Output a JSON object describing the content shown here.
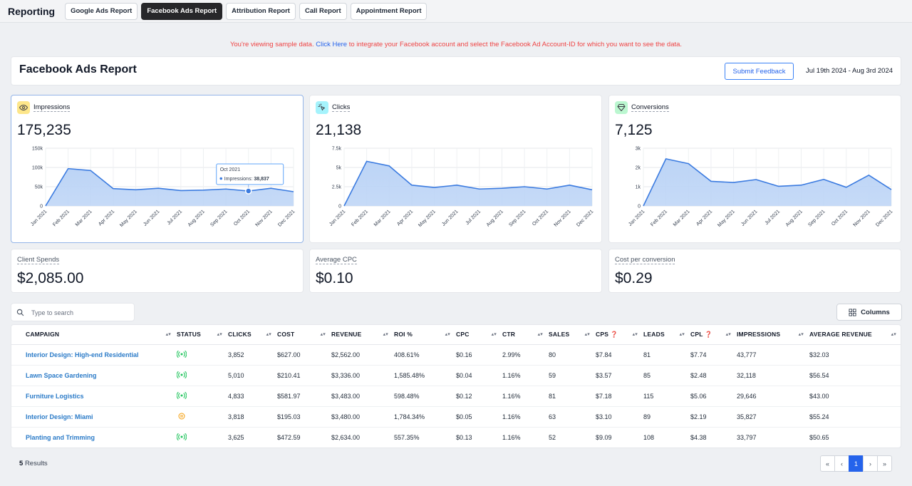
{
  "topbar": {
    "brand": "Reporting",
    "tabs": [
      {
        "label": "Google Ads Report",
        "active": false
      },
      {
        "label": "Facebook Ads Report",
        "active": true
      },
      {
        "label": "Attribution Report",
        "active": false
      },
      {
        "label": "Call Report",
        "active": false
      },
      {
        "label": "Appointment Report",
        "active": false
      }
    ]
  },
  "banner": {
    "prefix": "You're viewing sample data.",
    "link": "Click Here",
    "suffix": "to integrate your Facebook account and select the Facebook Ad Account-ID for which you want to see the data."
  },
  "header": {
    "title": "Facebook Ads Report",
    "feedback_label": "Submit Feedback",
    "date_range": "Jul 19th 2024 - Aug 3rd 2024"
  },
  "colors": {
    "accent": "#2563eb",
    "link": "#2b7bc8",
    "chart_line": "#3b7be0",
    "chart_fill": "#bcd4f6",
    "status_active": "#22c55e",
    "status_paused": "#f59e0b",
    "banner": "#ef4444"
  },
  "metrics": [
    {
      "label": "Impressions",
      "value": "175,235",
      "icon": "eye-icon",
      "icon_bg": "#fde68a",
      "selected": true,
      "tooltip": {
        "title": "Oct 2021",
        "label": "Impressions:",
        "value": "38,837",
        "index": 9
      }
    },
    {
      "label": "Clicks",
      "value": "21,138",
      "icon": "cursor-click-icon",
      "icon_bg": "#a5f3fc",
      "selected": false
    },
    {
      "label": "Conversions",
      "value": "7,125",
      "icon": "diamond-icon",
      "icon_bg": "#bbf7d0",
      "selected": false
    }
  ],
  "chart_data": [
    {
      "type": "area",
      "series": [
        {
          "name": "Impressions",
          "values": [
            0,
            97000,
            92000,
            45000,
            42000,
            46000,
            40000,
            41000,
            44000,
            38837,
            46000,
            37000
          ]
        }
      ],
      "categories": [
        "Jan 2021",
        "Feb 2021",
        "Mar 2021",
        "Apr 2021",
        "May 2021",
        "Jun 2021",
        "Jul 2021",
        "Aug 2021",
        "Sep 2021",
        "Oct 2021",
        "Nov 2021",
        "Dec 2021"
      ],
      "yticks": [
        "0",
        "50k",
        "100k",
        "150k"
      ],
      "ylim": [
        0,
        150000
      ],
      "grid": true
    },
    {
      "type": "area",
      "series": [
        {
          "name": "Clicks",
          "values": [
            0,
            5800,
            5200,
            2700,
            2400,
            2700,
            2200,
            2300,
            2500,
            2200,
            2700,
            2100
          ]
        }
      ],
      "categories": [
        "Jan 2021",
        "Feb 2021",
        "Mar 2021",
        "Apr 2021",
        "May 2021",
        "Jun 2021",
        "Jul 2021",
        "Aug 2021",
        "Sep 2021",
        "Oct 2021",
        "Nov 2021",
        "Dec 2021"
      ],
      "yticks": [
        "0",
        "2.5k",
        "5k",
        "7.5k"
      ],
      "ylim": [
        0,
        7500
      ],
      "grid": true
    },
    {
      "type": "area",
      "series": [
        {
          "name": "Conversions",
          "values": [
            0,
            2450,
            2200,
            1280,
            1220,
            1370,
            1020,
            1080,
            1380,
            970,
            1600,
            850
          ]
        }
      ],
      "categories": [
        "Jan 2021",
        "Feb 2021",
        "Mar 2021",
        "Apr 2021",
        "May 2021",
        "Jun 2021",
        "Jul 2021",
        "Aug 2021",
        "Sep 2021",
        "Oct 2021",
        "Nov 2021",
        "Dec 2021"
      ],
      "yticks": [
        "0",
        "1k",
        "2k",
        "3k"
      ],
      "ylim": [
        0,
        3000
      ],
      "grid": true
    }
  ],
  "summary": [
    {
      "label": "Client Spends",
      "value": "$2,085.00"
    },
    {
      "label": "Average CPC",
      "value": "$0.10"
    },
    {
      "label": "Cost per conversion",
      "value": "$0.29"
    }
  ],
  "search": {
    "placeholder": "Type to search"
  },
  "columns_label": "Columns",
  "table": {
    "headers": [
      "CAMPAIGN",
      "STATUS",
      "CLICKS",
      "COST",
      "REVENUE",
      "ROI %",
      "CPC",
      "CTR",
      "SALES",
      "CPS",
      "LEADS",
      "CPL",
      "IMPRESSIONS",
      "AVERAGE REVENUE"
    ],
    "rows": [
      {
        "campaign": "Interior Design: High-end Residential",
        "status": "active",
        "clicks": "3,852",
        "cost": "$627.00",
        "revenue": "$2,562.00",
        "roi": "408.61%",
        "cpc": "$0.16",
        "ctr": "2.99%",
        "sales": "80",
        "cps": "$7.84",
        "leads": "81",
        "cpl": "$7.74",
        "impressions": "43,777",
        "avg_revenue": "$32.03"
      },
      {
        "campaign": "Lawn Space Gardening",
        "status": "active",
        "clicks": "5,010",
        "cost": "$210.41",
        "revenue": "$3,336.00",
        "roi": "1,585.48%",
        "cpc": "$0.04",
        "ctr": "1.16%",
        "sales": "59",
        "cps": "$3.57",
        "leads": "85",
        "cpl": "$2.48",
        "impressions": "32,118",
        "avg_revenue": "$56.54"
      },
      {
        "campaign": "Furniture Logistics",
        "status": "active",
        "clicks": "4,833",
        "cost": "$581.97",
        "revenue": "$3,483.00",
        "roi": "598.48%",
        "cpc": "$0.12",
        "ctr": "1.16%",
        "sales": "81",
        "cps": "$7.18",
        "leads": "115",
        "cpl": "$5.06",
        "impressions": "29,646",
        "avg_revenue": "$43.00"
      },
      {
        "campaign": "Interior Design: Miami",
        "status": "paused",
        "clicks": "3,818",
        "cost": "$195.03",
        "revenue": "$3,480.00",
        "roi": "1,784.34%",
        "cpc": "$0.05",
        "ctr": "1.16%",
        "sales": "63",
        "cps": "$3.10",
        "leads": "89",
        "cpl": "$2.19",
        "impressions": "35,827",
        "avg_revenue": "$55.24"
      },
      {
        "campaign": "Planting and Trimming",
        "status": "active",
        "clicks": "3,625",
        "cost": "$472.59",
        "revenue": "$2,634.00",
        "roi": "557.35%",
        "cpc": "$0.13",
        "ctr": "1.16%",
        "sales": "52",
        "cps": "$9.09",
        "leads": "108",
        "cpl": "$4.38",
        "impressions": "33,797",
        "avg_revenue": "$50.65"
      }
    ]
  },
  "footer": {
    "result_count": "5",
    "result_label": "Results",
    "pagination": [
      "«",
      "‹",
      "1",
      "›",
      "»"
    ],
    "current_page": "1"
  }
}
